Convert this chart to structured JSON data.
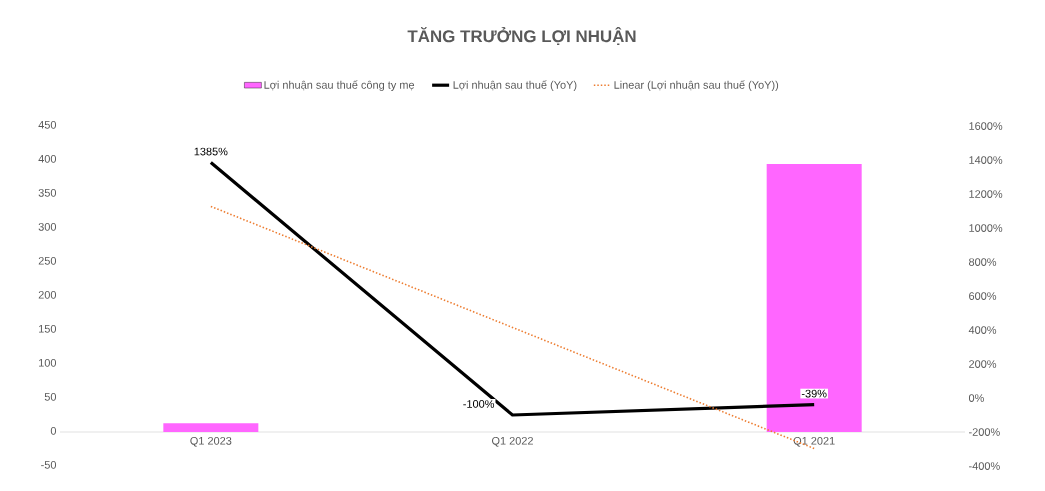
{
  "chart_data": {
    "type": "bar",
    "title": "TĂNG TRƯỞNG LỢI NHUẬN",
    "categories": [
      "Q1 2023",
      "Q1 2022",
      "Q1 2021"
    ],
    "series": [
      {
        "name": "Lợi nhuận sau thuế công ty mẹ",
        "color": "#ff66ff",
        "values": [
          13,
          0,
          394
        ]
      },
      {
        "name": "Lợi nhuận sau thuế (YoY)",
        "type": "line",
        "axis": "y2",
        "color": "#000000",
        "line_style": "solid",
        "values": [
          1385,
          -100,
          -39
        ],
        "value_labels": [
          "1385%",
          "-100%",
          "-39%"
        ]
      },
      {
        "name": "Linear (Lợi nhuận sau thuế (YoY))",
        "type": "line",
        "axis": "y2",
        "color": "#ed7d31",
        "line_style": "dotted",
        "values": [
          1127,
          415,
          -297
        ]
      }
    ],
    "ylim": [
      -50,
      450
    ],
    "yticks": [
      -50,
      0,
      50,
      100,
      150,
      200,
      250,
      300,
      350,
      400,
      450
    ],
    "y2lim": [
      -400,
      1600
    ],
    "y2ticks": [
      {
        "value": -400,
        "label": "-400%"
      },
      {
        "value": -200,
        "label": "-200%"
      },
      {
        "value": 0,
        "label": "0%"
      },
      {
        "value": 200,
        "label": "200%"
      },
      {
        "value": 400,
        "label": "400%"
      },
      {
        "value": 600,
        "label": "600%"
      },
      {
        "value": 800,
        "label": "800%"
      },
      {
        "value": 1000,
        "label": "1000%"
      },
      {
        "value": 1200,
        "label": "1200%"
      },
      {
        "value": 1400,
        "label": "1400%"
      },
      {
        "value": 1600,
        "label": "1600%"
      }
    ],
    "legend": "top",
    "marker": "none",
    "grid": false
  }
}
